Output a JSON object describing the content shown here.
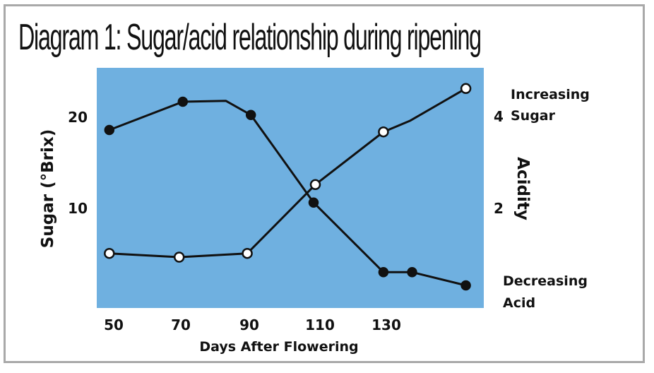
{
  "chart_data": {
    "type": "line",
    "title": "Diagram 1: Sugar/acid relationship during ripening",
    "xlabel": "Days After Flowering",
    "ylabel_left": "Sugar (°Brix)",
    "ylabel_right": "Acidity",
    "x_ticks": [
      "50",
      "70",
      "90",
      "110",
      "130"
    ],
    "y_left_ticks": [
      "20",
      "10"
    ],
    "y_right_ticks": [
      "4",
      "2"
    ],
    "xlim": [
      48,
      156
    ],
    "ylim_left": [
      0,
      25.5
    ],
    "background_color": "#6fb0e0",
    "series": [
      {
        "name": "Increasing Sugar",
        "marker": "open-circle",
        "points": [
          {
            "x": 51.5,
            "y": 5.8,
            "marker": true
          },
          {
            "x": 71,
            "y": 5.4,
            "marker": true
          },
          {
            "x": 90,
            "y": 5.8,
            "marker": true
          },
          {
            "x": 109,
            "y": 13.1,
            "marker": true
          },
          {
            "x": 128,
            "y": 18.7,
            "marker": true
          },
          {
            "x": 135.5,
            "y": 19.9,
            "marker": false
          },
          {
            "x": 151,
            "y": 23.3,
            "marker": true
          }
        ]
      },
      {
        "name": "Decreasing Acid",
        "marker": "filled-circle",
        "points": [
          {
            "x": 51.5,
            "y": 18.9,
            "marker": true
          },
          {
            "x": 72,
            "y": 21.9,
            "marker": true
          },
          {
            "x": 84,
            "y": 22.0,
            "marker": false
          },
          {
            "x": 91,
            "y": 20.5,
            "marker": true
          },
          {
            "x": 108.5,
            "y": 11.2,
            "marker": true
          },
          {
            "x": 128,
            "y": 3.8,
            "marker": true
          },
          {
            "x": 136,
            "y": 3.8,
            "marker": true
          },
          {
            "x": 151,
            "y": 2.4,
            "marker": true
          }
        ]
      }
    ],
    "annotations": {
      "sugar": [
        "Increasing",
        "Sugar"
      ],
      "acid": [
        "Decreasing",
        "Acid"
      ]
    }
  }
}
